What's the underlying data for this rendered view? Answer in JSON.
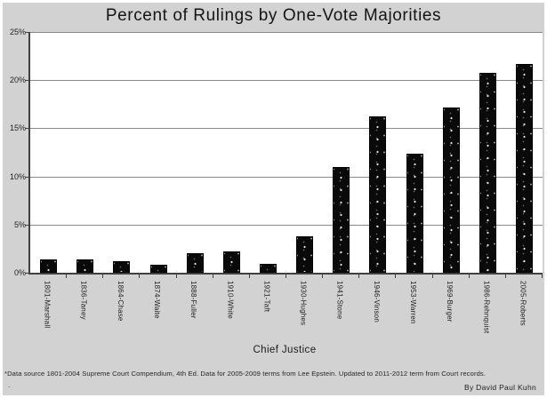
{
  "chart_data": {
    "type": "bar",
    "title": "Percent of Rulings by One-Vote Majorities",
    "xlabel": "Chief Justice",
    "ylabel": "",
    "ylim": [
      0,
      25
    ],
    "yticks": [
      0,
      5,
      10,
      15,
      20,
      25
    ],
    "ytick_labels": [
      "0%",
      "5%",
      "10%",
      "15%",
      "20%",
      "25%"
    ],
    "grid": true,
    "legend": false,
    "categories": [
      "1801-Marshall",
      "1836-Taney",
      "1864-Chase",
      "1874-Waite",
      "1888-Fuller",
      "1910-White",
      "1921-Taft",
      "1930-Hughes",
      "1941-Stone",
      "1946-Vinson",
      "1953-Warren",
      "1969-Burger",
      "1986-Rehnquist",
      "2005-Roberts"
    ],
    "values": [
      1.4,
      1.4,
      1.2,
      0.8,
      2.0,
      2.2,
      0.9,
      3.8,
      11.0,
      16.2,
      12.4,
      17.2,
      20.8,
      21.7
    ],
    "bar_pattern": "black-with-white-speckles"
  },
  "footer": {
    "note": "*Data source 1801-2004 Supreme Court Compendium, 4th Ed. Data for 2005-2009 terms from Lee Epstein. Updated to 2011-2012 term from Court records.",
    "note2": ".",
    "byline": "By David Paul Kuhn"
  },
  "colors": {
    "chart_background": "#d2d2d2",
    "plot_background": "#ffffff",
    "gridline": "#8a8a8a",
    "axis": "#404040",
    "bar": "#0a0a0a",
    "text": "#1a1a1a"
  }
}
